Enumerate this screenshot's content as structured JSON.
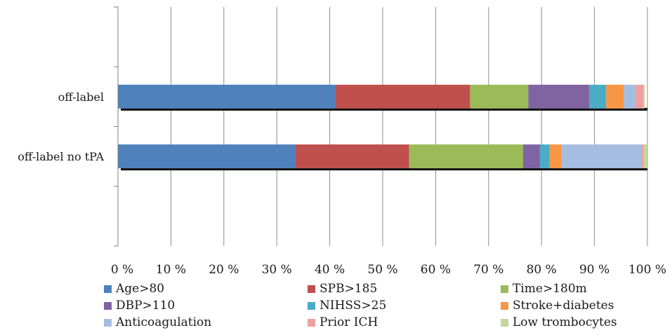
{
  "chart_data": {
    "type": "bar",
    "orientation": "horizontal",
    "stacked": "percent",
    "categories": [
      "off-label",
      "off-label no tPA"
    ],
    "series": [
      {
        "name": "Age>80",
        "color": "#4f81bd",
        "values": [
          41,
          33.5
        ]
      },
      {
        "name": "SPB>185",
        "color": "#c0504d",
        "values": [
          25.5,
          21.5
        ]
      },
      {
        "name": "Time>180m",
        "color": "#9bbb59",
        "values": [
          11,
          21.5
        ]
      },
      {
        "name": "DBP>110",
        "color": "#8064a2",
        "values": [
          11.5,
          3.2
        ]
      },
      {
        "name": "NIHSS>25",
        "color": "#4bacc6",
        "values": [
          3.2,
          1.8
        ]
      },
      {
        "name": "Stroke+diabetes",
        "color": "#f79646",
        "values": [
          3.3,
          2.3
        ]
      },
      {
        "name": "Anticoagulation",
        "color": "#a5bde0",
        "values": [
          2.2,
          15
        ]
      },
      {
        "name": "Prior ICH",
        "color": "#eea0a0",
        "values": [
          1.5,
          0.5
        ]
      },
      {
        "name": "Low trombocytes",
        "color": "#c3d69b",
        "values": [
          0.3,
          0.7
        ]
      }
    ],
    "xlim": [
      0,
      100
    ],
    "x_ticks": [
      "0 %",
      "10 %",
      "20 %",
      "30 %",
      "40 %",
      "50 %",
      "60 %",
      "70 %",
      "80 %",
      "90 %",
      "100 %"
    ],
    "grid": "vertical",
    "legend_position": "bottom"
  }
}
